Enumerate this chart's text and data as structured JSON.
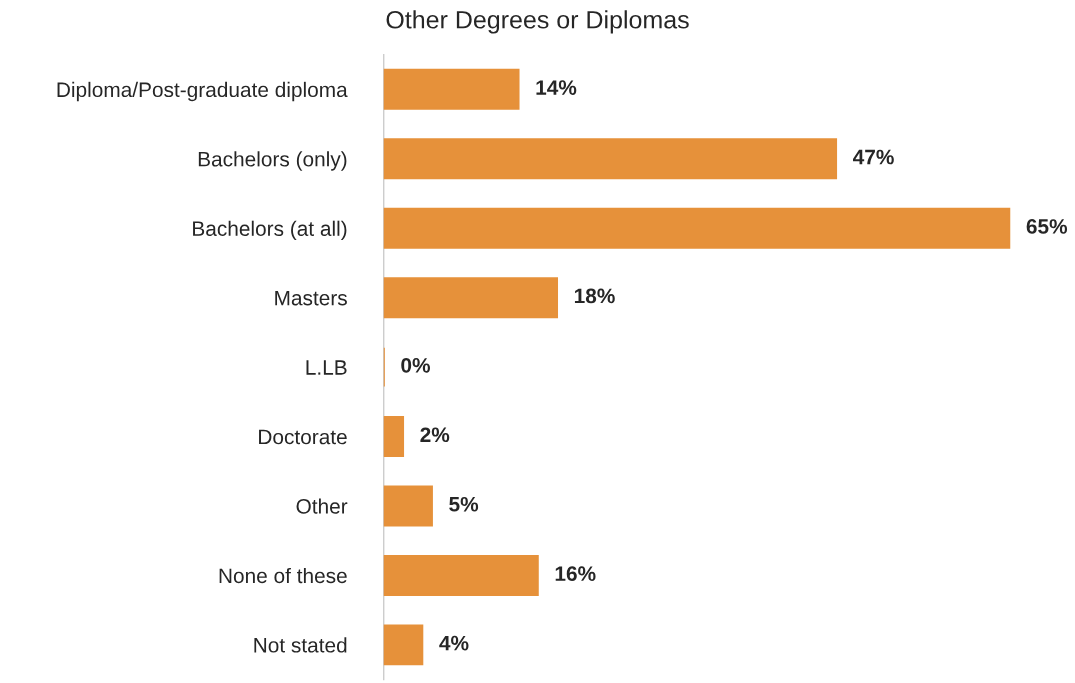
{
  "chart_data": {
    "type": "bar",
    "title": "Other Degrees or Diplomas",
    "orientation": "horizontal",
    "categories": [
      "Diploma/Post-graduate diploma",
      "Bachelors (only)",
      "Bachelors (at all)",
      "Masters",
      "L.LB",
      "Doctorate",
      "Other",
      "None of these",
      "Not stated"
    ],
    "values": [
      14,
      47,
      65,
      18,
      0,
      2,
      5,
      16,
      4
    ],
    "value_labels": [
      "14%",
      "47%",
      "65%",
      "18%",
      "0%",
      "2%",
      "5%",
      "16%",
      "4%"
    ],
    "color": "#e6913a",
    "tick_labels": "y",
    "grid": false,
    "legend": false
  }
}
